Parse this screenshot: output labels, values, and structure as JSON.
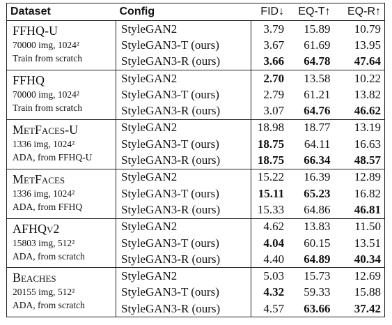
{
  "table": {
    "header": [
      "Dataset",
      "Config",
      "FID↓",
      "EQ-T↑",
      "EQ-R↑"
    ],
    "groups": [
      {
        "dataset": "FFHQ-U",
        "details": [
          "70000 img, 1024²",
          "Train from scratch"
        ],
        "rows": [
          {
            "config": "StyleGAN2",
            "values": [
              "3.79",
              "15.89",
              "10.79"
            ],
            "bold": [
              false,
              false,
              false
            ]
          },
          {
            "config": "StyleGAN3-T (ours)",
            "values": [
              "3.67",
              "61.69",
              "13.95"
            ],
            "bold": [
              false,
              false,
              false
            ]
          },
          {
            "config": "StyleGAN3-R (ours)",
            "values": [
              "3.66",
              "64.78",
              "47.64"
            ],
            "bold": [
              true,
              true,
              true
            ]
          }
        ]
      },
      {
        "dataset": "FFHQ",
        "details": [
          "70000 img, 1024²",
          "Train from scratch"
        ],
        "rows": [
          {
            "config": "StyleGAN2",
            "values": [
              "2.70",
              "13.58",
              "10.22"
            ],
            "bold": [
              true,
              false,
              false
            ]
          },
          {
            "config": "StyleGAN3-T (ours)",
            "values": [
              "2.79",
              "61.21",
              "13.82"
            ],
            "bold": [
              false,
              false,
              false
            ]
          },
          {
            "config": "StyleGAN3-R (ours)",
            "values": [
              "3.07",
              "64.76",
              "46.62"
            ],
            "bold": [
              false,
              true,
              true
            ]
          }
        ]
      },
      {
        "dataset": "MetFaces-U",
        "details": [
          "1336 img, 1024²",
          "ADA, from FFHQ-U"
        ],
        "rows": [
          {
            "config": "StyleGAN2",
            "values": [
              "18.98",
              "18.77",
              "13.19"
            ],
            "bold": [
              false,
              false,
              false
            ]
          },
          {
            "config": "StyleGAN3-T (ours)",
            "values": [
              "18.75",
              "64.11",
              "16.63"
            ],
            "bold": [
              true,
              false,
              false
            ]
          },
          {
            "config": "StyleGAN3-R (ours)",
            "values": [
              "18.75",
              "66.34",
              "48.57"
            ],
            "bold": [
              true,
              true,
              true
            ]
          }
        ]
      },
      {
        "dataset": "MetFaces",
        "details": [
          "1336 img, 1024²",
          "ADA, from FFHQ"
        ],
        "rows": [
          {
            "config": "StyleGAN2",
            "values": [
              "15.22",
              "16.39",
              "12.89"
            ],
            "bold": [
              false,
              false,
              false
            ]
          },
          {
            "config": "StyleGAN3-T (ours)",
            "values": [
              "15.11",
              "65.23",
              "16.82"
            ],
            "bold": [
              true,
              true,
              false
            ]
          },
          {
            "config": "StyleGAN3-R (ours)",
            "values": [
              "15.33",
              "64.86",
              "46.81"
            ],
            "bold": [
              false,
              false,
              true
            ]
          }
        ]
      },
      {
        "dataset": "AFHQv2",
        "details": [
          "15803 img, 512²",
          "ADA, from scratch"
        ],
        "rows": [
          {
            "config": "StyleGAN2",
            "values": [
              "4.62",
              "13.83",
              "11.50"
            ],
            "bold": [
              false,
              false,
              false
            ]
          },
          {
            "config": "StyleGAN3-T (ours)",
            "values": [
              "4.04",
              "60.15",
              "13.51"
            ],
            "bold": [
              true,
              false,
              false
            ]
          },
          {
            "config": "StyleGAN3-R (ours)",
            "values": [
              "4.40",
              "64.89",
              "40.34"
            ],
            "bold": [
              false,
              true,
              true
            ]
          }
        ]
      },
      {
        "dataset": "Beaches",
        "details": [
          "20155 img, 512²",
          "ADA, from scratch"
        ],
        "rows": [
          {
            "config": "StyleGAN2",
            "values": [
              "5.03",
              "15.73",
              "12.69"
            ],
            "bold": [
              false,
              false,
              false
            ]
          },
          {
            "config": "StyleGAN3-T (ours)",
            "values": [
              "4.32",
              "59.33",
              "15.88"
            ],
            "bold": [
              true,
              false,
              false
            ]
          },
          {
            "config": "StyleGAN3-R (ours)",
            "values": [
              "4.57",
              "63.66",
              "37.42"
            ],
            "bold": [
              false,
              true,
              true
            ]
          }
        ]
      }
    ]
  }
}
